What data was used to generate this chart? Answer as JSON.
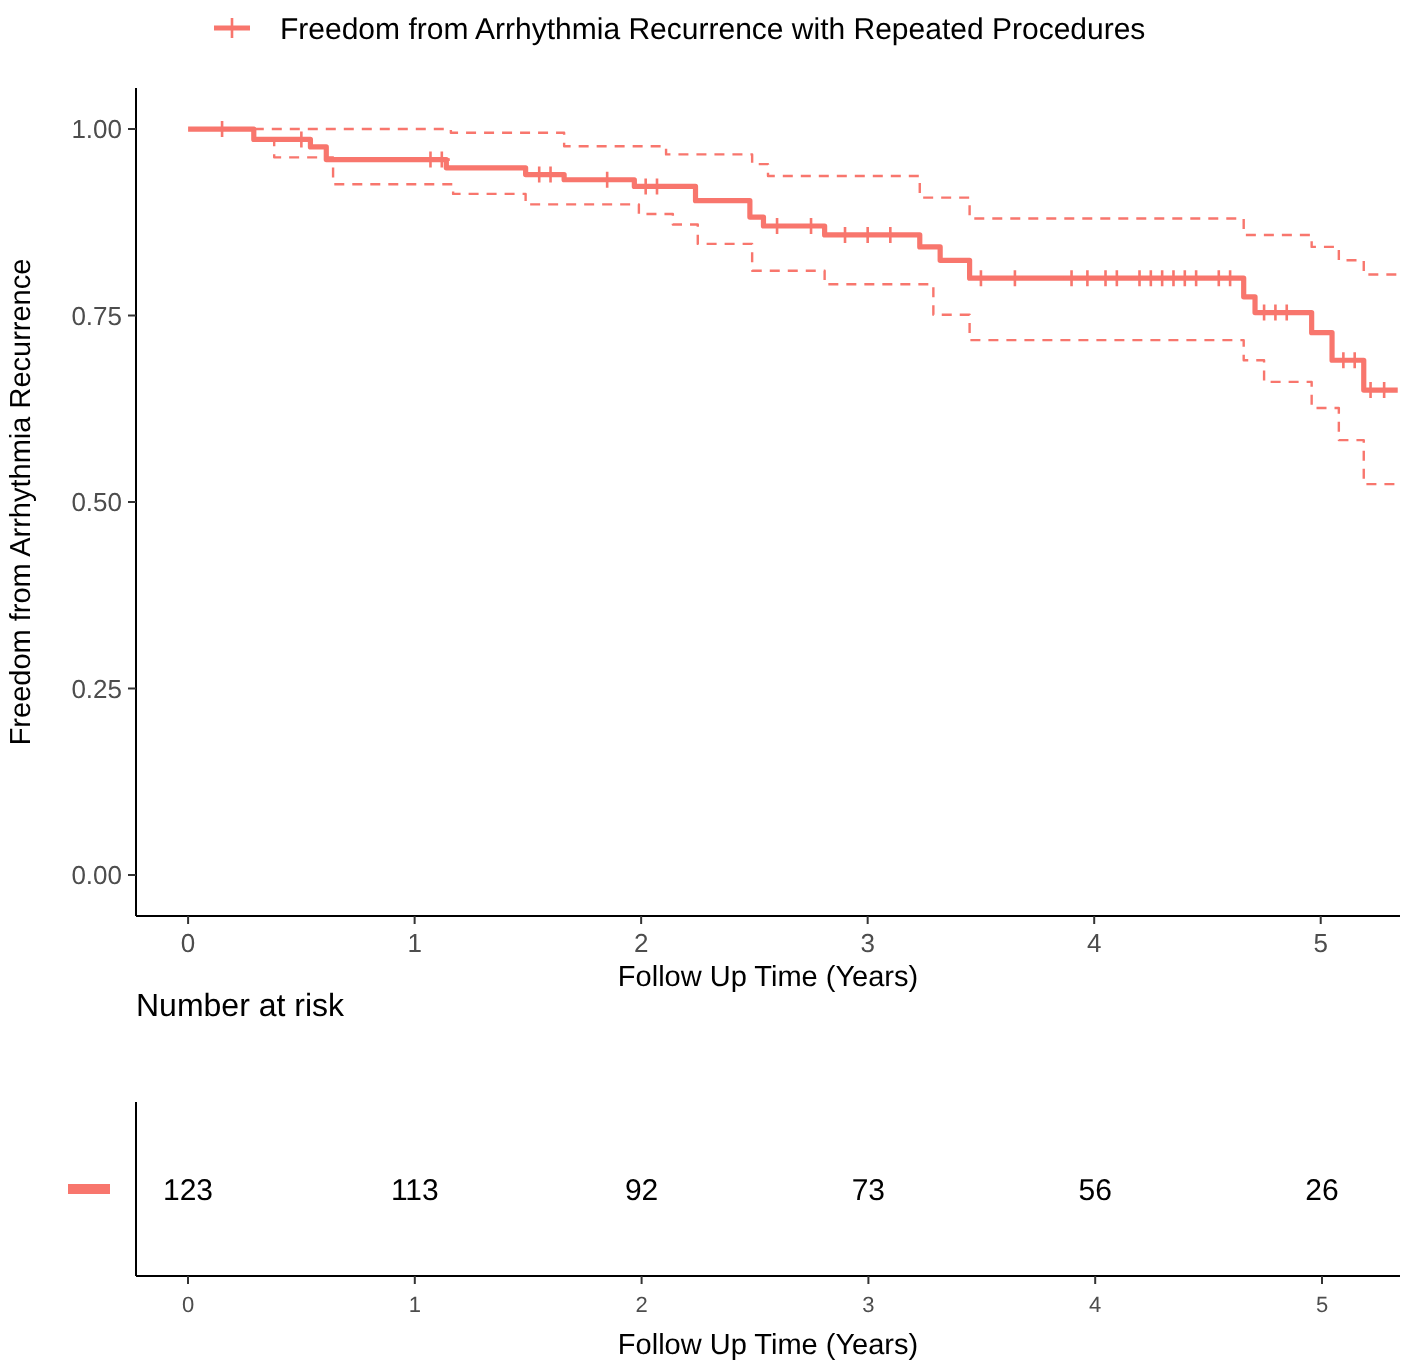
{
  "chart_data": [
    {
      "type": "step",
      "xlabel": "Follow Up Time (Years)",
      "ylabel": "Freedom from Arrhythmia Recurrence",
      "xlim": [
        -0.23,
        5.35
      ],
      "ylim": [
        -0.055,
        1.055
      ],
      "xticks": [
        0,
        1,
        2,
        3,
        4,
        5
      ],
      "yticks": [
        {
          "value": 0,
          "label": "0.00"
        },
        {
          "value": 0.25,
          "label": "0.25"
        },
        {
          "value": 0.5,
          "label": "0.50"
        },
        {
          "value": 0.75,
          "label": "0.75"
        },
        {
          "value": 1,
          "label": "1.00"
        }
      ],
      "grid": false,
      "legend": "top",
      "series": [
        {
          "name": "Freedom from Arrhythmia Recurrence with Repeated Procedures",
          "type": "step",
          "color": "#f8766d",
          "line_style": "solid",
          "x": [
            0,
            0.29,
            0.54,
            0.61,
            1.14,
            1.49,
            1.66,
            1.97,
            2.24,
            2.48,
            2.54,
            2.81,
            3.23,
            3.32,
            3.45,
            4.66,
            4.71,
            4.96,
            5.05,
            5.19,
            5.34
          ],
          "values": [
            1.0,
            0.986,
            0.976,
            0.959,
            0.948,
            0.939,
            0.932,
            0.923,
            0.904,
            0.882,
            0.87,
            0.858,
            0.842,
            0.824,
            0.8,
            0.775,
            0.754,
            0.727,
            0.69,
            0.65,
            0.65
          ]
        },
        {
          "type": "step",
          "color": "#f8766d",
          "line_style": "dashed",
          "x": [
            0.29,
            1.16,
            1.66,
            2.11,
            2.49,
            2.56,
            3.23,
            3.45,
            4.66,
            4.96,
            5.08,
            5.19,
            5.34
          ],
          "values": [
            1.0,
            0.995,
            0.977,
            0.966,
            0.953,
            0.937,
            0.908,
            0.88,
            0.858,
            0.842,
            0.824,
            0.805,
            0.805
          ]
        },
        {
          "type": "step",
          "color": "#f8766d",
          "line_style": "dashed",
          "x": [
            0.29,
            0.38,
            0.64,
            1.17,
            1.49,
            1.99,
            2.14,
            2.25,
            2.49,
            2.81,
            3.29,
            3.45,
            4.66,
            4.75,
            4.96,
            5.08,
            5.19,
            5.34
          ],
          "values": [
            0.987,
            0.962,
            0.926,
            0.913,
            0.899,
            0.886,
            0.872,
            0.846,
            0.81,
            0.792,
            0.751,
            0.717,
            0.69,
            0.661,
            0.626,
            0.583,
            0.524,
            0.524
          ]
        },
        {
          "type": "scatter",
          "color": "#f8766d",
          "marker": "cross",
          "x": [
            0.15,
            0.5,
            1.07,
            1.12,
            1.55,
            1.6,
            1.85,
            2.02,
            2.07,
            2.6,
            2.75,
            2.9,
            3.0,
            3.1,
            3.5,
            3.65,
            3.9,
            3.97,
            4.05,
            4.1,
            4.2,
            4.25,
            4.3,
            4.35,
            4.4,
            4.45,
            4.55,
            4.6,
            4.75,
            4.8,
            4.85,
            5.1,
            5.15,
            5.22,
            5.28
          ],
          "values": [
            1.0,
            0.986,
            0.959,
            0.959,
            0.939,
            0.939,
            0.932,
            0.923,
            0.923,
            0.87,
            0.87,
            0.858,
            0.858,
            0.858,
            0.8,
            0.8,
            0.8,
            0.8,
            0.8,
            0.8,
            0.8,
            0.8,
            0.8,
            0.8,
            0.8,
            0.8,
            0.8,
            0.8,
            0.754,
            0.754,
            0.754,
            0.69,
            0.69,
            0.65,
            0.65
          ]
        }
      ]
    },
    {
      "type": "heatmap",
      "title": "Number at risk",
      "xlabel": "Follow Up Time (Years)",
      "categories": [
        "0",
        "1",
        "2",
        "3",
        "4",
        "5"
      ],
      "y_categories": [
        null
      ],
      "tick_labels": "x",
      "data_labels": true,
      "cells": [
        [
          123,
          113,
          92,
          73,
          56,
          26
        ]
      ]
    }
  ]
}
